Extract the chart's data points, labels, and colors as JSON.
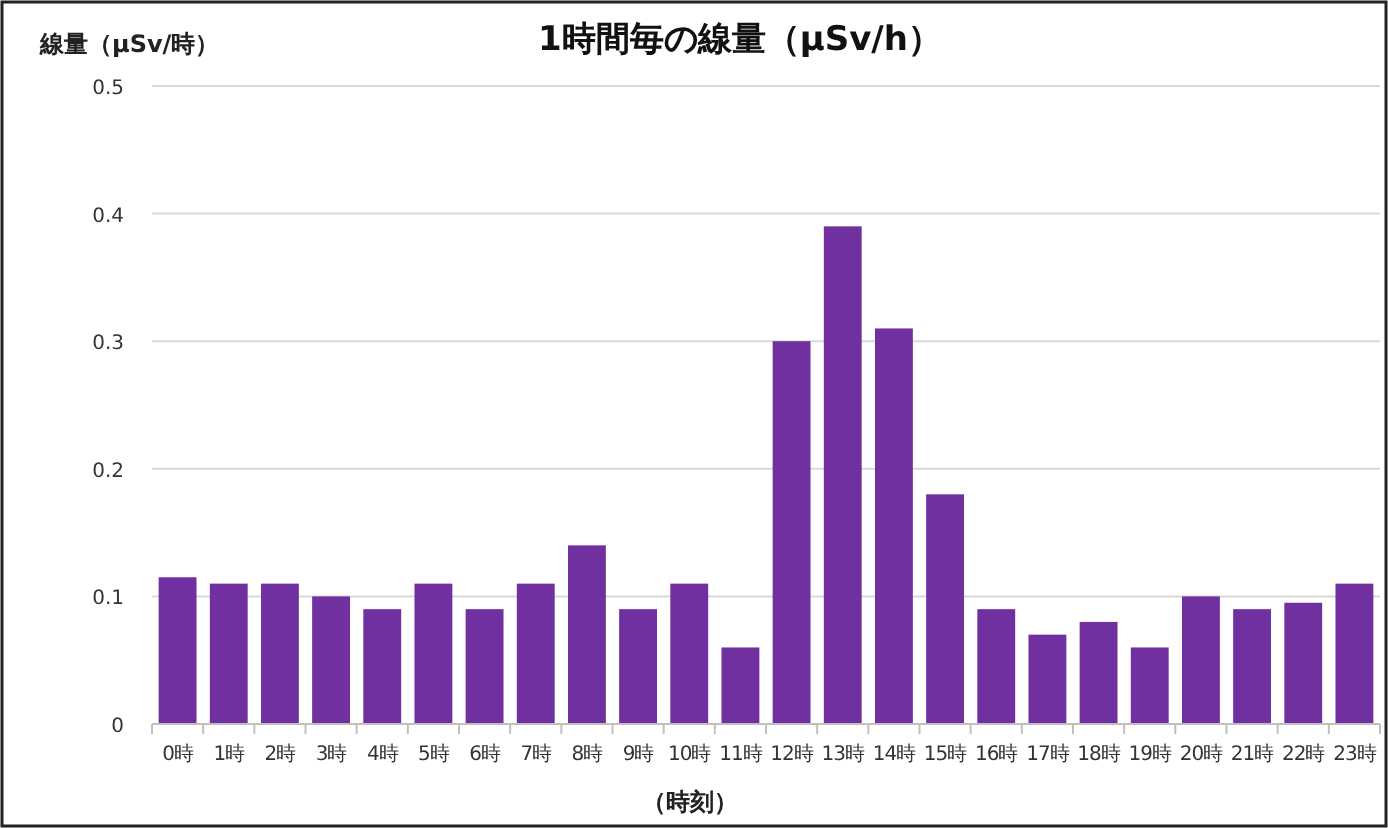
{
  "chart_data": {
    "type": "bar",
    "title": "1時間毎の線量（µSv/h）",
    "ylabel": "線量（µSv/時）",
    "xlabel": "（時刻）",
    "categories": [
      "0時",
      "1時",
      "2時",
      "3時",
      "4時",
      "5時",
      "6時",
      "7時",
      "8時",
      "9時",
      "10時",
      "11時",
      "12時",
      "13時",
      "14時",
      "15時",
      "16時",
      "17時",
      "18時",
      "19時",
      "20時",
      "21時",
      "22時",
      "23時"
    ],
    "values": [
      0.115,
      0.11,
      0.11,
      0.1,
      0.09,
      0.11,
      0.09,
      0.11,
      0.14,
      0.09,
      0.11,
      0.06,
      0.3,
      0.39,
      0.31,
      0.18,
      0.09,
      0.07,
      0.08,
      0.06,
      0.1,
      0.09,
      0.095,
      0.11
    ],
    "color": "#7030a0",
    "ylim": [
      0,
      0.5
    ],
    "yticks": [
      0,
      0.1,
      0.2,
      0.3,
      0.4,
      0.5
    ],
    "grid": "y"
  }
}
